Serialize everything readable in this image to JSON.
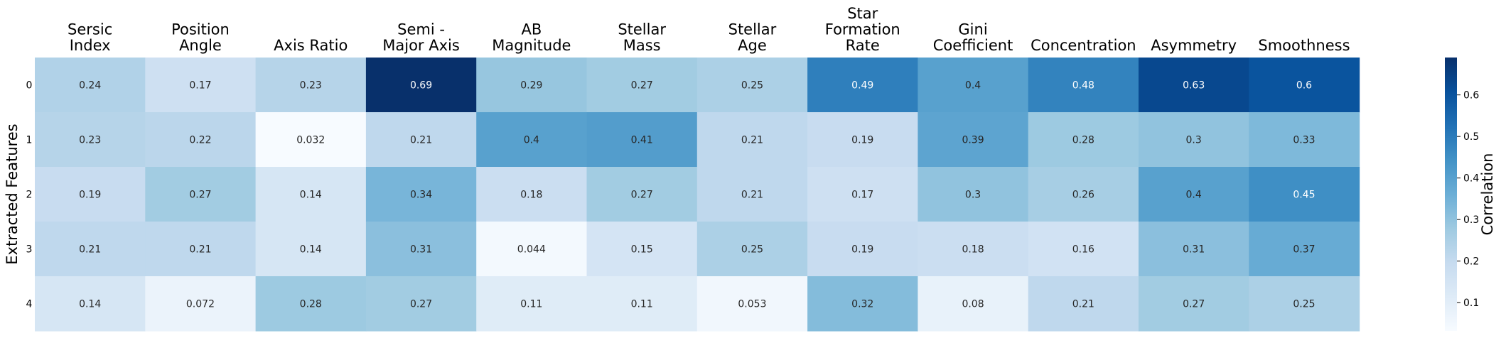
{
  "chart_data": {
    "type": "heatmap",
    "title": "",
    "xlabel": "",
    "ylabel": "Extracted Features",
    "column_labels": [
      [
        "Sersic",
        "Index"
      ],
      [
        "Position",
        "Angle"
      ],
      [
        "Axis Ratio"
      ],
      [
        "Semi -",
        "Major Axis"
      ],
      [
        "AB",
        "Magnitude"
      ],
      [
        "Stellar",
        "Mass"
      ],
      [
        "Stellar",
        "Age"
      ],
      [
        "Star",
        "Formation",
        "Rate"
      ],
      [
        "Gini",
        "Coefficient"
      ],
      [
        "Concentration"
      ],
      [
        "Asymmetry"
      ],
      [
        "Smoothness"
      ]
    ],
    "row_labels": [
      "0",
      "1",
      "2",
      "3",
      "4"
    ],
    "values": [
      [
        0.24,
        0.17,
        0.23,
        0.69,
        0.29,
        0.27,
        0.25,
        0.49,
        0.4,
        0.48,
        0.63,
        0.6
      ],
      [
        0.23,
        0.22,
        0.032,
        0.21,
        0.4,
        0.41,
        0.21,
        0.19,
        0.39,
        0.28,
        0.3,
        0.33
      ],
      [
        0.19,
        0.27,
        0.14,
        0.34,
        0.18,
        0.27,
        0.21,
        0.17,
        0.3,
        0.26,
        0.4,
        0.45
      ],
      [
        0.21,
        0.21,
        0.14,
        0.31,
        0.044,
        0.15,
        0.25,
        0.19,
        0.18,
        0.16,
        0.31,
        0.37
      ],
      [
        0.14,
        0.072,
        0.28,
        0.27,
        0.11,
        0.11,
        0.053,
        0.32,
        0.08,
        0.21,
        0.27,
        0.25
      ]
    ],
    "colorbar": {
      "label": "Correlation",
      "min": 0.032,
      "max": 0.69,
      "ticks": [
        0.1,
        0.2,
        0.3,
        0.4,
        0.5,
        0.6
      ],
      "tick_labels": [
        "0.1",
        "0.2",
        "0.3",
        "0.4",
        "0.5",
        "0.6"
      ],
      "colormap": "Blues",
      "colors": [
        "#f7fbff",
        "#deebf7",
        "#c6dbef",
        "#9ecae1",
        "#6baed6",
        "#4292c6",
        "#2171b5",
        "#08519c",
        "#08306b"
      ]
    },
    "column_labels_position": "top",
    "annotations": true
  }
}
